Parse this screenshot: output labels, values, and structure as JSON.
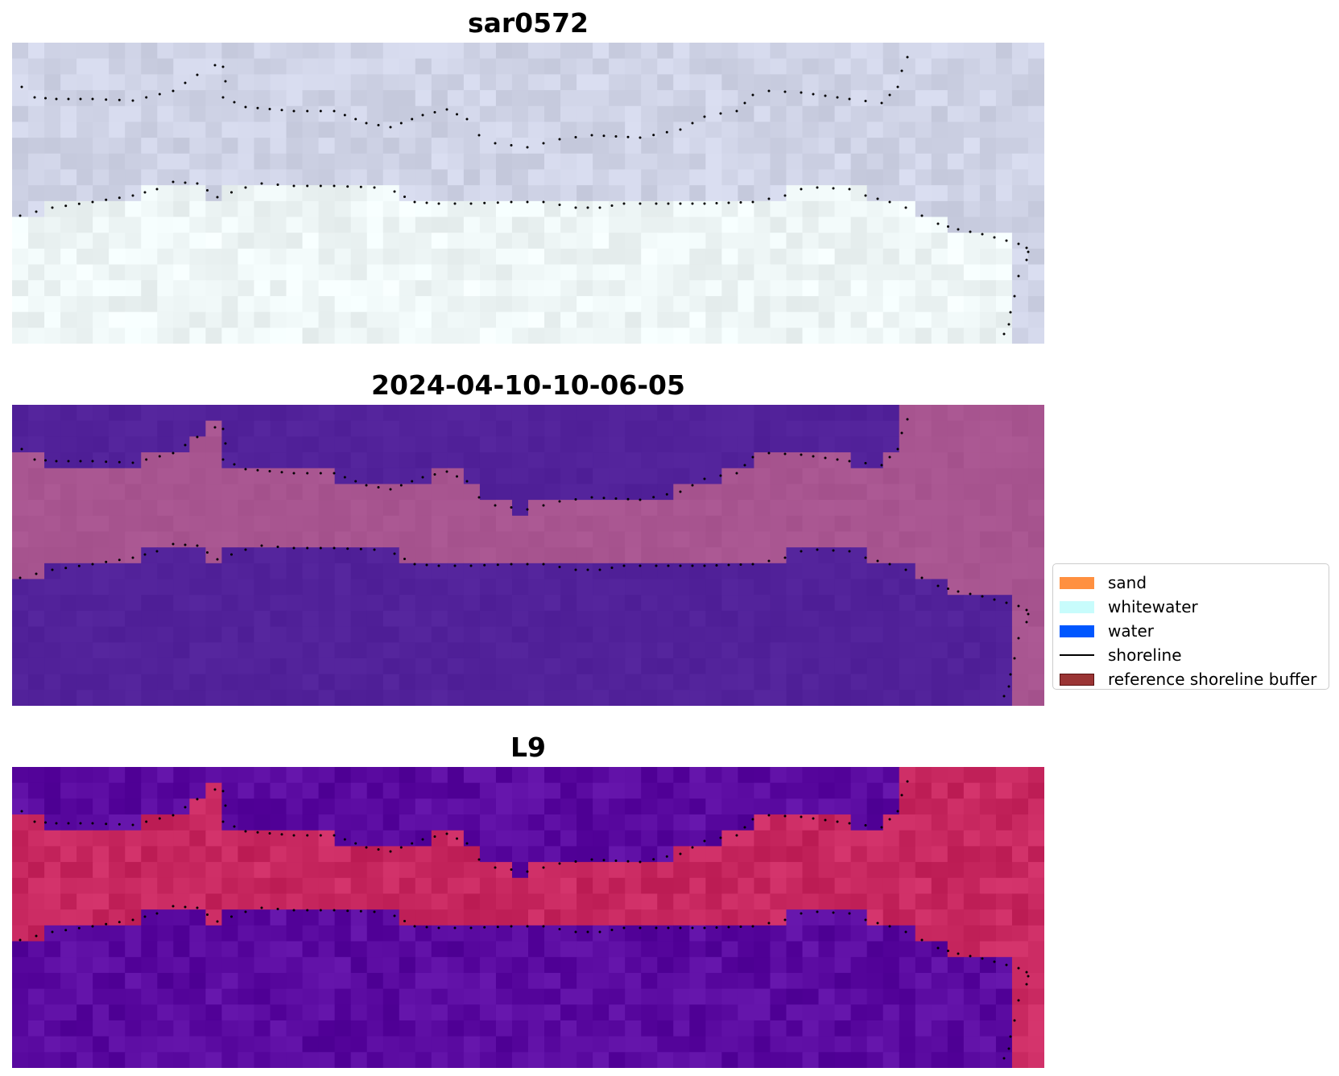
{
  "panels": [
    {
      "id": "rgb",
      "title": "sar0572"
    },
    {
      "id": "classified",
      "title": "2024-04-10-10-06-05"
    },
    {
      "id": "index",
      "title": "L9"
    }
  ],
  "legend": {
    "items": [
      {
        "label": "sand",
        "kind": "patch",
        "color": "#ff9040",
        "border": "#ff9040"
      },
      {
        "label": "whitewater",
        "kind": "patch",
        "color": "#c8fcfc",
        "border": "#c8fcfc"
      },
      {
        "label": "water",
        "kind": "patch",
        "color": "#0057ff",
        "border": "#0057ff"
      },
      {
        "label": "shoreline",
        "kind": "line",
        "color": "#000000"
      },
      {
        "label": "reference shoreline buffer",
        "kind": "patch",
        "color": "#9a3434",
        "border": "#5a1010"
      }
    ]
  },
  "colors": {
    "rgb_water": "#cfd3e6",
    "rgb_whitewater": "#eef6f6",
    "class_water": "#52229a",
    "class_sand": "#a85590",
    "index_water": "#5a0aa0",
    "index_sand": "#c82860",
    "shoreline": "#000000"
  },
  "icons": [
    "sand-swatch-icon",
    "whitewater-swatch-icon",
    "water-swatch-icon",
    "shoreline-line-icon",
    "buffer-swatch-icon"
  ]
}
